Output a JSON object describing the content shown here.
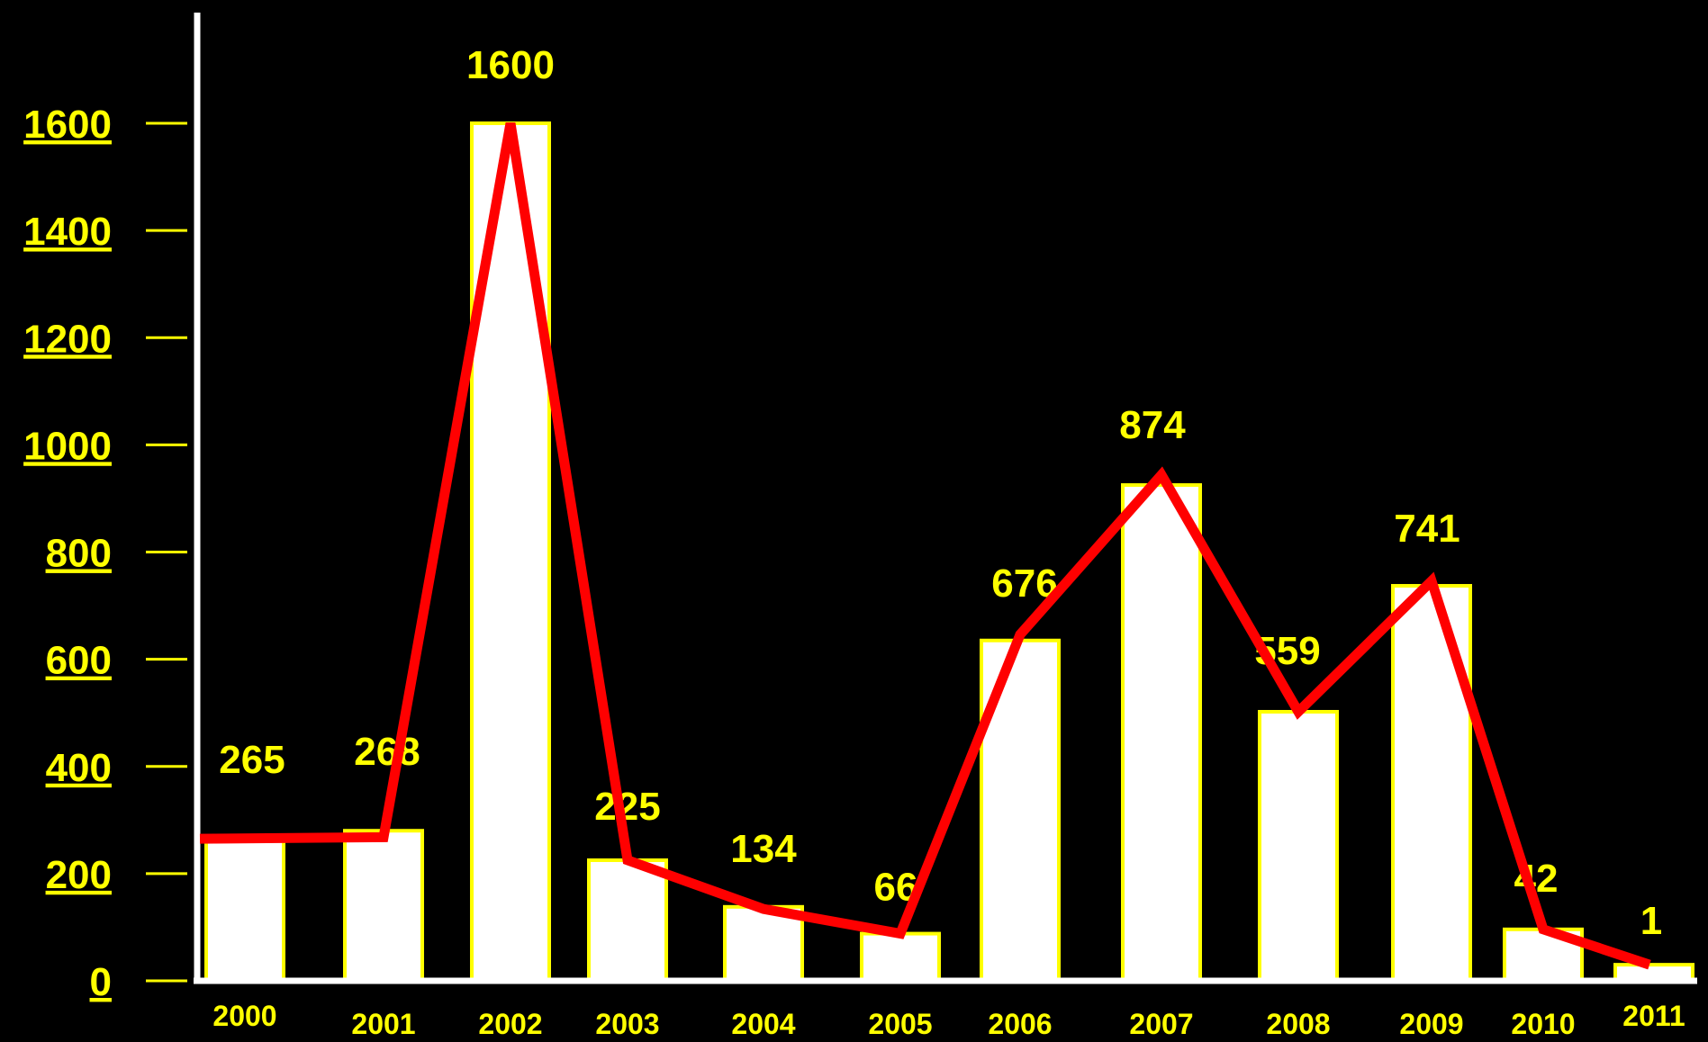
{
  "chart_data": {
    "type": "bar",
    "categories": [
      "2000",
      "2001",
      "2002",
      "2003",
      "2004",
      "2005",
      "2006",
      "2007",
      "2008",
      "2009",
      "2010",
      "2011"
    ],
    "values": [
      265,
      268,
      1600,
      225,
      134,
      66,
      676,
      874,
      559,
      741,
      42,
      1
    ],
    "bar_values": [
      265,
      280,
      1600,
      225,
      138,
      88,
      635,
      925,
      502,
      737,
      96,
      30
    ],
    "line_values": [
      265,
      268,
      1600,
      225,
      134,
      88,
      646,
      944,
      502,
      746,
      96,
      30
    ],
    "y_ticks": [
      0,
      200,
      400,
      600,
      800,
      1000,
      1200,
      1400,
      1600
    ],
    "ylim": [
      0,
      1600
    ],
    "grid": false,
    "legend": "none",
    "title": "",
    "xlabel": "",
    "ylabel": "",
    "colors": {
      "background": "#000000",
      "bar_fill": "#ffffff",
      "bar_outline": "#ffff00",
      "line": "#ff0000",
      "axis": "#ffffff",
      "tick_label": "#ffff00",
      "category_label": "#ffff00",
      "data_label": "#ffff00",
      "tick_mark": "#ffff00"
    }
  }
}
